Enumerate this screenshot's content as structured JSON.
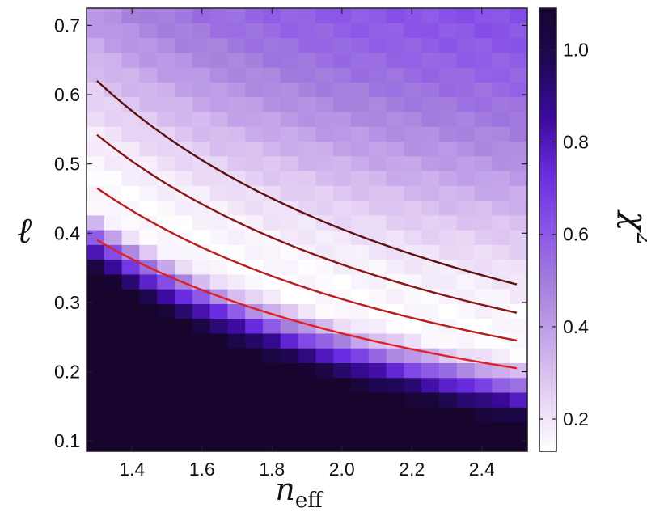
{
  "chart_data": {
    "type": "heatmap",
    "x": {
      "label": "n",
      "label_subscript": "eff",
      "range": [
        1.27,
        2.53
      ],
      "ticks": [
        1.4,
        1.6,
        1.8,
        2.0,
        2.2,
        2.4
      ],
      "tick_labels": [
        "1.4",
        "1.6",
        "1.8",
        "2.0",
        "2.2",
        "2.4"
      ]
    },
    "y": {
      "label": "ℓ",
      "range": [
        0.085,
        0.725
      ],
      "ticks": [
        0.1,
        0.2,
        0.3,
        0.4,
        0.5,
        0.6,
        0.7
      ],
      "tick_labels": [
        "0.1",
        "0.2",
        "0.3",
        "0.4",
        "0.5",
        "0.6",
        "0.7"
      ]
    },
    "colorbar": {
      "label": "χ",
      "label_superscript": "2",
      "range": [
        0.13,
        1.09
      ],
      "ticks": [
        0.2,
        0.4,
        0.6,
        0.8,
        1.0
      ],
      "tick_labels": [
        "0.2",
        "0.4",
        "0.6",
        "0.8",
        "1.0"
      ],
      "colors": [
        "#ffffff",
        "#e6d2f4",
        "#c6a6ea",
        "#a57fdd",
        "#8a55e8",
        "#6a2ce0",
        "#3c0a9e",
        "#1f0857",
        "#17052e"
      ]
    },
    "grid_cells": {
      "nx": 25,
      "ny": 30
    },
    "chi2_model": {
      "valley_amplitude": 0.58,
      "valley_exponent": 1.0,
      "steep_side_width": 0.075,
      "flat_side_width": 0.3,
      "floor": 0.14
    },
    "series": [
      {
        "color": "#5e1010",
        "x": [
          1.3,
          2.5
        ],
        "y": [
          0.62,
          0.326
        ]
      },
      {
        "color": "#8a1515",
        "x": [
          1.3,
          2.5
        ],
        "y": [
          0.542,
          0.285
        ]
      },
      {
        "color": "#bb1c1c",
        "x": [
          1.3,
          2.5
        ],
        "y": [
          0.465,
          0.245
        ]
      },
      {
        "color": "#e02020",
        "x": [
          1.3,
          2.5
        ],
        "y": [
          0.39,
          0.205
        ]
      }
    ]
  }
}
